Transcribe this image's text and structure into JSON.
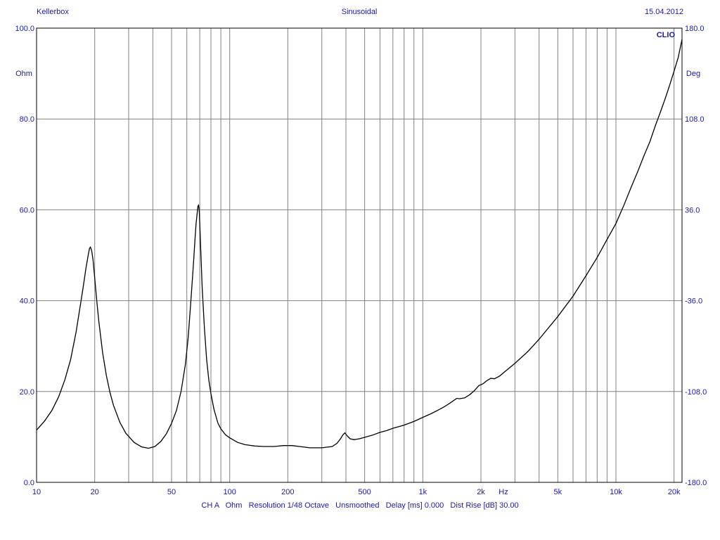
{
  "header": {
    "left": "Kellerbox",
    "center": "Sinusoidal",
    "right": "15.04.2012"
  },
  "brand": "CLIO",
  "footer": {
    "status_line": "CH A   Ohm   Resolution 1/48 Octave   Unsmoothed   Delay [ms] 0.000   Dist Rise [dB] 30.00"
  },
  "colors": {
    "label": "#1a1aa6",
    "grid": "#808080",
    "curve": "#000000",
    "background": "#ffffff"
  },
  "chart_data": {
    "type": "line",
    "x_scale": "log",
    "xlim": [
      10,
      22000
    ],
    "ylim": [
      0,
      100
    ],
    "y2lim": [
      -180,
      180
    ],
    "grid": true,
    "ylabel": "Ohm",
    "y2label": "Deg",
    "x_unit_label": "Hz",
    "x_ticks": [
      {
        "value": 10,
        "label": "10"
      },
      {
        "value": 20,
        "label": "20"
      },
      {
        "value": 50,
        "label": "50"
      },
      {
        "value": 100,
        "label": "100"
      },
      {
        "value": 200,
        "label": "200"
      },
      {
        "value": 500,
        "label": "500"
      },
      {
        "value": 1000,
        "label": "1k"
      },
      {
        "value": 2000,
        "label": "2k"
      },
      {
        "value": 5000,
        "label": "5k"
      },
      {
        "value": 10000,
        "label": "10k"
      },
      {
        "value": 20000,
        "label": "20k"
      }
    ],
    "x_gridlines": [
      10,
      20,
      30,
      40,
      50,
      60,
      70,
      80,
      90,
      100,
      200,
      300,
      400,
      500,
      600,
      700,
      800,
      900,
      1000,
      2000,
      3000,
      4000,
      5000,
      6000,
      7000,
      8000,
      9000,
      10000,
      20000
    ],
    "y_ticks": [
      {
        "value": 0,
        "label": "0.0"
      },
      {
        "value": 20,
        "label": "20.0"
      },
      {
        "value": 40,
        "label": "40.0"
      },
      {
        "value": 60,
        "label": "60.0"
      },
      {
        "value": 80,
        "label": "80.0"
      },
      {
        "value": 100,
        "label": "100.0"
      }
    ],
    "y2_ticks": [
      {
        "value": -180,
        "label": "-180.0"
      },
      {
        "value": -108,
        "label": "-108.0"
      },
      {
        "value": -36,
        "label": "-36.0"
      },
      {
        "value": 36,
        "label": "36.0"
      },
      {
        "value": 108,
        "label": "108.0"
      },
      {
        "value": 180,
        "label": "180.0"
      }
    ],
    "series": [
      {
        "x": [
          10,
          11,
          12,
          13,
          14,
          15,
          16,
          17,
          17.5,
          18,
          18.5,
          18.8,
          19,
          19.3,
          19.6,
          20,
          20.5,
          21,
          22,
          23,
          24,
          25,
          27,
          29,
          32,
          35,
          38,
          41,
          44,
          47,
          50,
          53,
          56,
          59,
          61,
          63,
          65,
          66,
          67,
          68,
          68.5,
          69,
          69.5,
          70,
          71,
          72,
          74,
          76,
          78,
          80,
          83,
          87,
          90,
          95,
          100,
          110,
          120,
          135,
          150,
          170,
          190,
          210,
          230,
          260,
          300,
          340,
          360,
          375,
          385,
          395,
          405,
          420,
          440,
          470,
          500,
          550,
          600,
          650,
          700,
          800,
          900,
          1000,
          1100,
          1200,
          1300,
          1400,
          1500,
          1550,
          1650,
          1750,
          1850,
          1950,
          2050,
          2150,
          2250,
          2350,
          2500,
          2700,
          3000,
          3500,
          4000,
          5000,
          6000,
          7000,
          8000,
          9000,
          10000,
          11000,
          12000,
          13000,
          14000,
          15000,
          16000,
          17000,
          18000,
          19000,
          20000,
          21000,
          22000
        ],
        "y": [
          11.5,
          13.5,
          15.8,
          18.8,
          22.5,
          27,
          33,
          40,
          43.5,
          47,
          50,
          51.5,
          51.8,
          51,
          49,
          45,
          40,
          35.5,
          28.5,
          23.5,
          19.8,
          17,
          13.2,
          10.8,
          8.8,
          7.8,
          7.5,
          7.9,
          9,
          10.7,
          13,
          15.8,
          20,
          26,
          32,
          40,
          48.5,
          53,
          57,
          59.5,
          60.8,
          61,
          60,
          57,
          50,
          43,
          34,
          27,
          22.5,
          19.5,
          16,
          13,
          11.8,
          10.5,
          9.8,
          8.8,
          8.3,
          8,
          7.9,
          7.9,
          8.1,
          8.1,
          7.9,
          7.6,
          7.6,
          7.9,
          8.6,
          9.6,
          10.4,
          10.9,
          10.3,
          9.6,
          9.4,
          9.6,
          9.9,
          10.4,
          11,
          11.4,
          11.9,
          12.6,
          13.4,
          14.3,
          15.1,
          15.9,
          16.7,
          17.6,
          18.5,
          18.4,
          18.6,
          19.3,
          20.2,
          21.3,
          21.7,
          22.4,
          22.9,
          22.8,
          23.4,
          24.6,
          26.2,
          28.8,
          31.5,
          36.5,
          41,
          45.5,
          49.5,
          53.5,
          57,
          61,
          65,
          68.5,
          72,
          75,
          78.5,
          81.5,
          84.5,
          87.5,
          90.5,
          93.5,
          97.5
        ]
      }
    ]
  }
}
